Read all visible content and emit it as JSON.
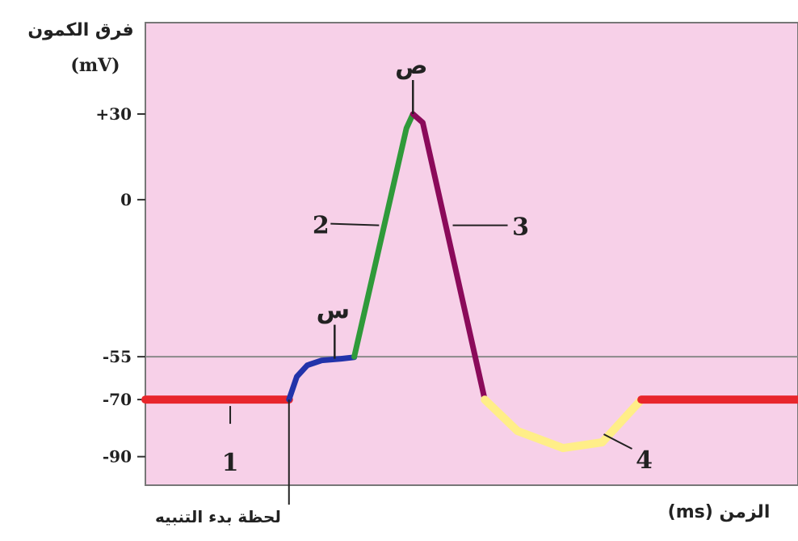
{
  "chart_data": {
    "type": "line",
    "ylabel": "فرق الكمون",
    "yunit": "(mV)",
    "xlabel": "الزمن (ms)",
    "stimulus_label": "لحظة بدء التنبيه",
    "yticks": [
      {
        "value": 30,
        "label": "+30"
      },
      {
        "value": 0,
        "label": "0"
      },
      {
        "value": -55,
        "label": "-55"
      },
      {
        "value": -70,
        "label": "-70"
      },
      {
        "value": -90,
        "label": "-90"
      }
    ],
    "ylim": [
      -100,
      62
    ],
    "xlim": [
      0,
      10
    ],
    "threshold": -55,
    "colors": {
      "background": "#f7d0e8",
      "threshold_line": "#8a8a8a",
      "phase1": "#e8262c",
      "phase2": "#2f9a3a",
      "phase3": "#8b0a5a",
      "phase4": "#ffee88",
      "depol_start": "#2233aa"
    },
    "segments": [
      {
        "id": "resting-left",
        "color_key": "phase1",
        "points": [
          [
            0,
            -70
          ],
          [
            2.2,
            -70
          ]
        ]
      },
      {
        "id": "local-depolarization",
        "color_key": "depol_start",
        "points": [
          [
            2.2,
            -70
          ],
          [
            2.32,
            -62
          ],
          [
            2.48,
            -58
          ],
          [
            2.7,
            -56.3
          ],
          [
            3.0,
            -55.7
          ],
          [
            3.2,
            -55.2
          ]
        ]
      },
      {
        "id": "depolarization",
        "color_key": "phase2",
        "points": [
          [
            3.2,
            -55
          ],
          [
            4.0,
            25
          ],
          [
            4.1,
            30
          ]
        ]
      },
      {
        "id": "repolarization",
        "color_key": "phase3",
        "points": [
          [
            4.1,
            30
          ],
          [
            4.25,
            27
          ],
          [
            5.2,
            -70
          ]
        ]
      },
      {
        "id": "hyperpolarization",
        "color_key": "phase4",
        "points": [
          [
            5.2,
            -70
          ],
          [
            5.7,
            -81
          ],
          [
            6.4,
            -87
          ],
          [
            7.0,
            -85
          ],
          [
            7.6,
            -70
          ]
        ]
      },
      {
        "id": "resting-right",
        "color_key": "phase1",
        "points": [
          [
            7.6,
            -70
          ],
          [
            10,
            -70
          ]
        ]
      }
    ],
    "point_labels": [
      {
        "id": "point-s",
        "text": "س",
        "x": 2.9,
        "y": -55.7
      },
      {
        "id": "point-sad",
        "text": "ص",
        "x": 4.1,
        "y": 30
      }
    ],
    "phase_labels": [
      {
        "text": "1",
        "x": 1.3,
        "y": -70
      },
      {
        "text": "2",
        "x": 3.63,
        "y": -5
      },
      {
        "text": "3",
        "x": 4.66,
        "y": -5
      },
      {
        "text": "4",
        "x": 6.9,
        "y": -85
      }
    ]
  }
}
